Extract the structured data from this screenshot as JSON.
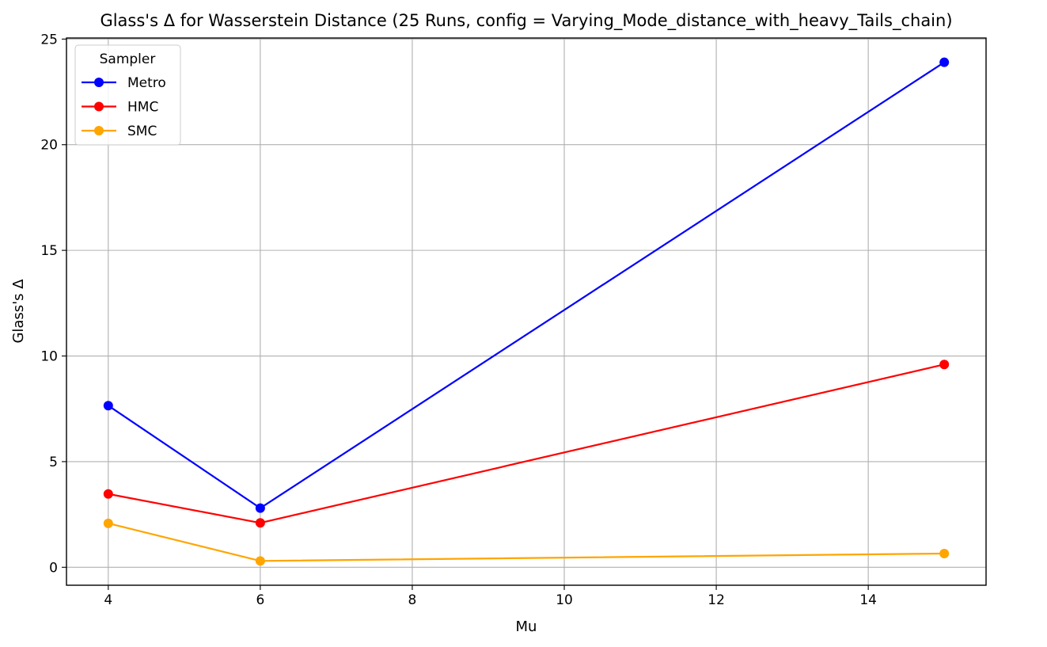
{
  "chart_data": {
    "type": "line",
    "title": "Glass's Δ for Wasserstein Distance (25 Runs, config = Varying_Mode_distance_with_heavy_Tails_chain)",
    "xlabel": "Mu",
    "ylabel": "Glass's Δ",
    "x": [
      4,
      6,
      15
    ],
    "xlim": [
      3.45,
      15.55
    ],
    "ylim": [
      -0.85,
      25.05
    ],
    "xticks": [
      4,
      6,
      8,
      10,
      12,
      14
    ],
    "yticks": [
      0,
      5,
      10,
      15,
      20,
      25
    ],
    "grid": true,
    "legend": {
      "title": "Sampler",
      "placement": "top-left"
    },
    "series": [
      {
        "name": "Metro",
        "color": "#0000ff",
        "values": [
          7.65,
          2.8,
          23.9
        ]
      },
      {
        "name": "HMC",
        "color": "#ff0000",
        "values": [
          3.47,
          2.1,
          9.6
        ]
      },
      {
        "name": "SMC",
        "color": "#ffa500",
        "values": [
          2.08,
          0.3,
          0.65
        ]
      }
    ]
  }
}
